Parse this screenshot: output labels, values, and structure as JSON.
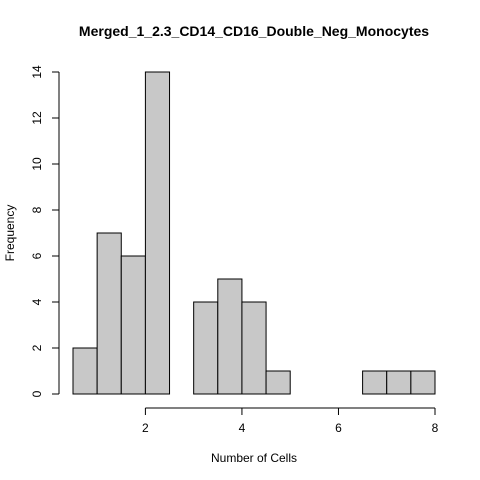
{
  "chart_data": {
    "type": "bar",
    "subtype": "histogram",
    "title": "Merged_1_2.3_CD14_CD16_Double_Neg_Monocytes",
    "xlabel": "Number of Cells",
    "ylabel": "Frequency",
    "bin_width": 0.5,
    "bins": [
      {
        "x0": 0.5,
        "x1": 1.0,
        "count": 2
      },
      {
        "x0": 1.0,
        "x1": 1.5,
        "count": 7
      },
      {
        "x0": 1.5,
        "x1": 2.0,
        "count": 6
      },
      {
        "x0": 2.0,
        "x1": 2.5,
        "count": 14
      },
      {
        "x0": 2.5,
        "x1": 3.0,
        "count": 0
      },
      {
        "x0": 3.0,
        "x1": 3.5,
        "count": 4
      },
      {
        "x0": 3.5,
        "x1": 4.0,
        "count": 5
      },
      {
        "x0": 4.0,
        "x1": 4.5,
        "count": 4
      },
      {
        "x0": 4.5,
        "x1": 5.0,
        "count": 1
      },
      {
        "x0": 5.0,
        "x1": 5.5,
        "count": 0
      },
      {
        "x0": 5.5,
        "x1": 6.0,
        "count": 0
      },
      {
        "x0": 6.0,
        "x1": 6.5,
        "count": 0
      },
      {
        "x0": 6.5,
        "x1": 7.0,
        "count": 1
      },
      {
        "x0": 7.0,
        "x1": 7.5,
        "count": 1
      },
      {
        "x0": 7.5,
        "x1": 8.0,
        "count": 1
      }
    ],
    "xlim": [
      0.5,
      8.0
    ],
    "ylim": [
      0,
      14
    ],
    "xticks": [
      2,
      4,
      6,
      8
    ],
    "xtick_labels": [
      "2",
      "4",
      "6",
      "8"
    ],
    "yticks": [
      0,
      2,
      4,
      6,
      8,
      10,
      12,
      14
    ],
    "ytick_labels": [
      "0",
      "2",
      "4",
      "6",
      "8",
      "10",
      "12",
      "14"
    ],
    "grid": false,
    "legend": "none",
    "colors": {
      "bar_fill": "#c8c8c8",
      "bar_stroke": "#000000",
      "background": "#ffffff"
    }
  }
}
